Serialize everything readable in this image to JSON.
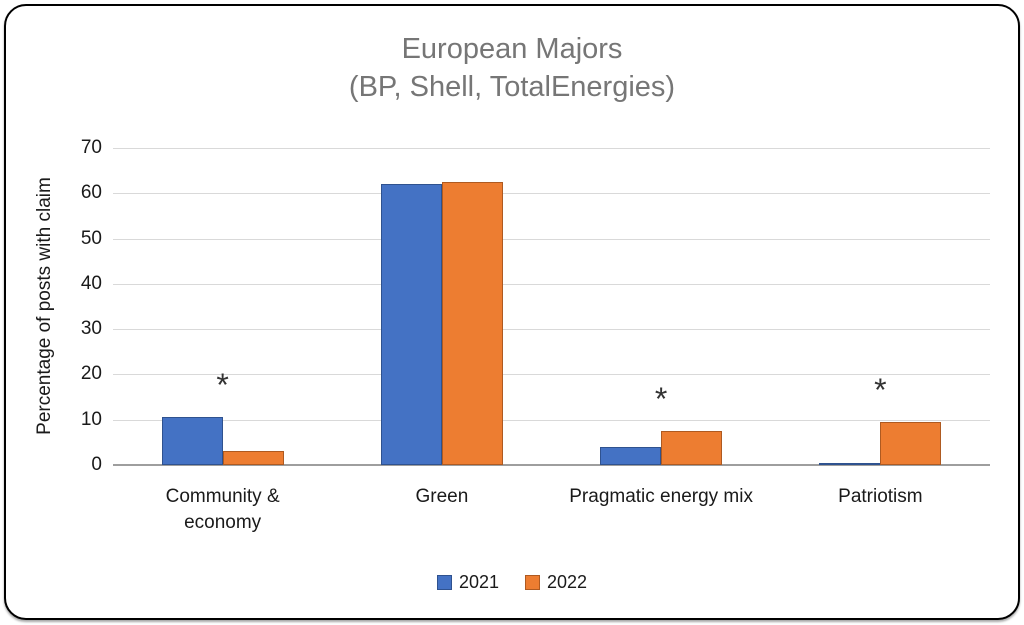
{
  "title": {
    "line1": "European Majors",
    "line2": "(BP, Shell, TotalEnergies)"
  },
  "chart_data": {
    "type": "bar",
    "title": "European Majors (BP, Shell, TotalEnergies)",
    "categories": [
      "Community &\neconomy",
      "Green",
      "Pragmatic energy mix",
      "Patriotism"
    ],
    "series": [
      {
        "name": "2021",
        "color": "#4472C4",
        "border_color": "#2F528F",
        "values": [
          10.5,
          62,
          4,
          0.4
        ]
      },
      {
        "name": "2022",
        "color": "#ED7D31",
        "border_color": "#AE5A21",
        "values": [
          3,
          62.5,
          7.5,
          9.5
        ]
      }
    ],
    "xlabel": "",
    "ylabel": "Percentage of posts with claim",
    "ylim": [
      0,
      70
    ],
    "ytick_step": 10,
    "grid": true,
    "legend_position": "bottom",
    "significance": {
      "symbol": "*",
      "flags": [
        true,
        false,
        true,
        true
      ]
    }
  }
}
